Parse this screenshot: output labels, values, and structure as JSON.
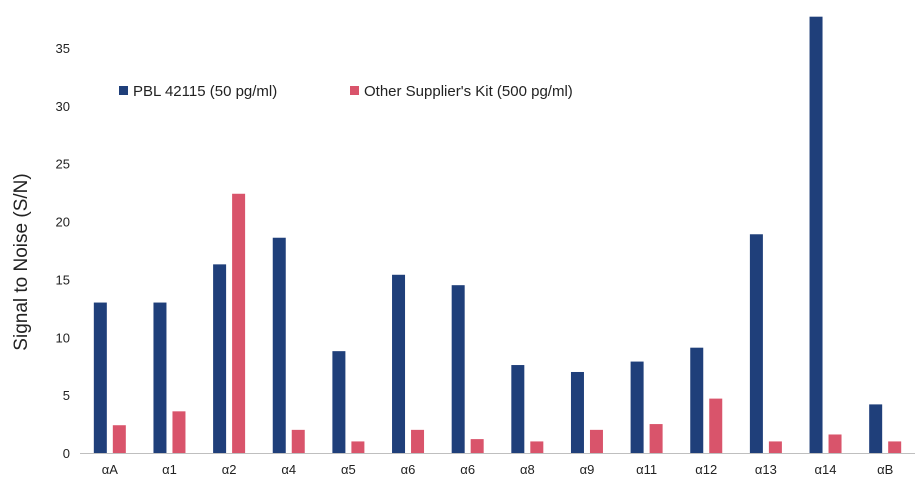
{
  "chart_data": {
    "type": "bar",
    "title": "",
    "xlabel": "",
    "ylabel": "Signal to Noise (S/N)",
    "ylim": [
      0,
      37.5
    ],
    "yticks": [
      0,
      5,
      10,
      15,
      20,
      25,
      30,
      35
    ],
    "grid": false,
    "legend_position": "top-left",
    "categories": [
      "αA",
      "α1",
      "α2",
      "α4",
      "α5",
      "α6",
      "α6",
      "α8",
      "α9",
      "α11",
      "α12",
      "α13",
      "α14",
      "αB"
    ],
    "series": [
      {
        "name": "PBL 42115 (50 pg/ml)",
        "color": "#1f3f7a",
        "values": [
          13,
          13,
          16.3,
          18.6,
          8.8,
          15.4,
          14.5,
          7.6,
          7.0,
          7.9,
          9.1,
          18.9,
          37.7,
          4.2
        ]
      },
      {
        "name": "Other Supplier's Kit (500 pg/ml)",
        "color": "#d9546b",
        "values": [
          2.4,
          3.6,
          22.4,
          2.0,
          1.0,
          2.0,
          1.2,
          1.0,
          2.0,
          2.5,
          4.7,
          1.0,
          1.6,
          1.0
        ]
      }
    ]
  }
}
